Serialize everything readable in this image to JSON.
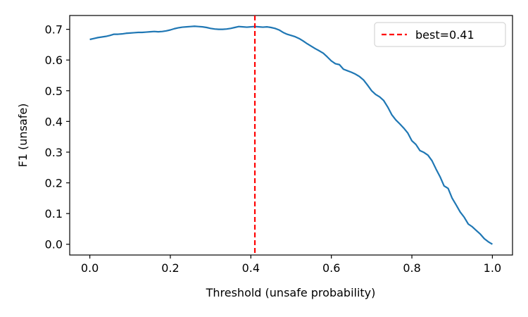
{
  "chart_data": {
    "type": "line",
    "title": "",
    "xlabel": "Threshold (unsafe probability)",
    "ylabel": "F1 (unsafe)",
    "xlim": [
      -0.05,
      1.05
    ],
    "ylim": [
      -0.035,
      0.745
    ],
    "xticks": [
      0.0,
      0.2,
      0.4,
      0.6,
      0.8,
      1.0
    ],
    "xtick_labels": [
      "0.0",
      "0.2",
      "0.4",
      "0.6",
      "0.8",
      "1.0"
    ],
    "yticks": [
      0.0,
      0.1,
      0.2,
      0.3,
      0.4,
      0.5,
      0.6,
      0.7
    ],
    "ytick_labels": [
      "0.0",
      "0.1",
      "0.2",
      "0.3",
      "0.4",
      "0.5",
      "0.6",
      "0.7"
    ],
    "grid": false,
    "legend_position": "top-right",
    "series": [
      {
        "color": "#1f77b4",
        "x": [
          0.0,
          0.01,
          0.02,
          0.03,
          0.04,
          0.05,
          0.06,
          0.07,
          0.08,
          0.09,
          0.1,
          0.11,
          0.12,
          0.13,
          0.14,
          0.15,
          0.16,
          0.17,
          0.18,
          0.19,
          0.2,
          0.21,
          0.22,
          0.23,
          0.24,
          0.25,
          0.26,
          0.27,
          0.28,
          0.29,
          0.3,
          0.31,
          0.32,
          0.33,
          0.34,
          0.35,
          0.36,
          0.37,
          0.38,
          0.39,
          0.4,
          0.41,
          0.42,
          0.43,
          0.44,
          0.45,
          0.46,
          0.47,
          0.48,
          0.49,
          0.5,
          0.51,
          0.52,
          0.53,
          0.54,
          0.55,
          0.56,
          0.57,
          0.58,
          0.59,
          0.6,
          0.61,
          0.62,
          0.63,
          0.64,
          0.65,
          0.66,
          0.67,
          0.68,
          0.69,
          0.7,
          0.71,
          0.72,
          0.73,
          0.74,
          0.75,
          0.76,
          0.77,
          0.78,
          0.79,
          0.8,
          0.81,
          0.82,
          0.83,
          0.84,
          0.85,
          0.86,
          0.87,
          0.88,
          0.89,
          0.9,
          0.91,
          0.92,
          0.93,
          0.94,
          0.95,
          0.96,
          0.97,
          0.98,
          0.99,
          1.0
        ],
        "y": [
          0.667,
          0.67,
          0.673,
          0.675,
          0.677,
          0.68,
          0.684,
          0.684,
          0.685,
          0.687,
          0.688,
          0.689,
          0.69,
          0.69,
          0.691,
          0.692,
          0.693,
          0.692,
          0.693,
          0.695,
          0.698,
          0.702,
          0.705,
          0.707,
          0.708,
          0.709,
          0.71,
          0.709,
          0.708,
          0.706,
          0.703,
          0.701,
          0.7,
          0.7,
          0.701,
          0.703,
          0.706,
          0.709,
          0.708,
          0.707,
          0.708,
          0.709,
          0.708,
          0.707,
          0.708,
          0.706,
          0.703,
          0.698,
          0.69,
          0.684,
          0.68,
          0.676,
          0.67,
          0.662,
          0.653,
          0.645,
          0.637,
          0.63,
          0.622,
          0.61,
          0.597,
          0.588,
          0.585,
          0.57,
          0.565,
          0.56,
          0.554,
          0.546,
          0.535,
          0.518,
          0.5,
          0.488,
          0.48,
          0.468,
          0.447,
          0.422,
          0.405,
          0.392,
          0.378,
          0.362,
          0.337,
          0.325,
          0.305,
          0.299,
          0.29,
          0.272,
          0.245,
          0.22,
          0.19,
          0.182,
          0.15,
          0.128,
          0.105,
          0.088,
          0.066,
          0.057,
          0.045,
          0.033,
          0.018,
          0.008,
          0.0
        ]
      },
      {
        "name": "best=0.41",
        "color": "#ff0000",
        "style": "dashed",
        "vertical_line_x": 0.41
      }
    ]
  }
}
